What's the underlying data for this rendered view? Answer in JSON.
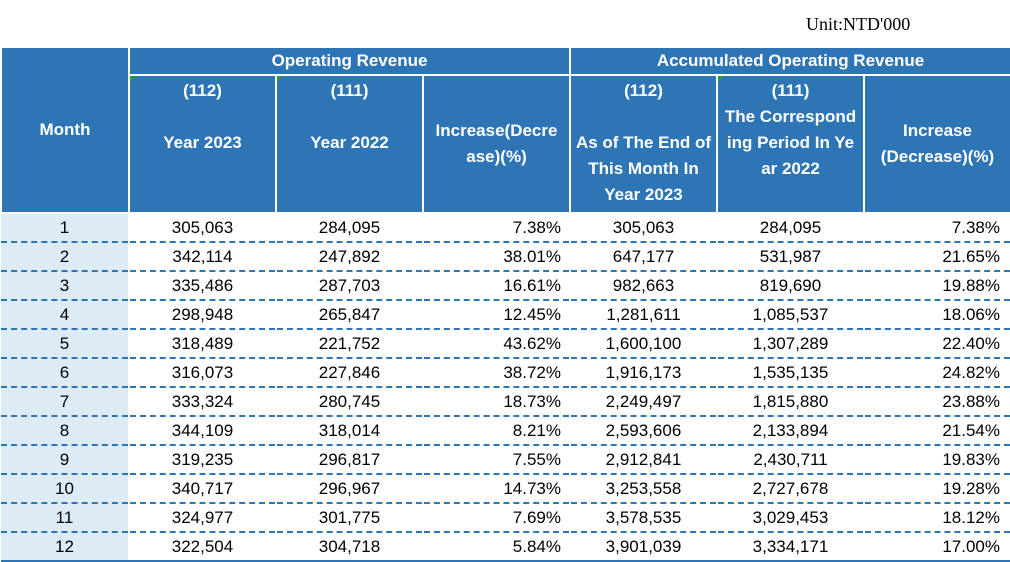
{
  "unit_label": "Unit:NTD'000",
  "headers": {
    "month": "Month",
    "operating_revenue": "Operating Revenue",
    "accumulated_revenue": "Accumulated Operating Revenue",
    "or_112": "(112)",
    "or_112_year": "Year 2023",
    "or_111": "(111)",
    "or_111_year": "Year 2022",
    "or_change": "Increase(Decrease)(%)",
    "acc_112": "(112)",
    "acc_112_desc": "As of The End of This Month In Year 2023",
    "acc_111": "(111)",
    "acc_111_desc": "The Corresponding Period In Year 2022",
    "acc_change": "Increase (Decrease)(%)"
  },
  "rows": [
    {
      "month": "1",
      "rev_2023": "305,063",
      "rev_2022": "284,095",
      "rev_change": "7.38%",
      "acc_2023": "305,063",
      "acc_2022": "284,095",
      "acc_change": "7.38%"
    },
    {
      "month": "2",
      "rev_2023": "342,114",
      "rev_2022": "247,892",
      "rev_change": "38.01%",
      "acc_2023": "647,177",
      "acc_2022": "531,987",
      "acc_change": "21.65%"
    },
    {
      "month": "3",
      "rev_2023": "335,486",
      "rev_2022": "287,703",
      "rev_change": "16.61%",
      "acc_2023": "982,663",
      "acc_2022": "819,690",
      "acc_change": "19.88%"
    },
    {
      "month": "4",
      "rev_2023": "298,948",
      "rev_2022": "265,847",
      "rev_change": "12.45%",
      "acc_2023": "1,281,611",
      "acc_2022": "1,085,537",
      "acc_change": "18.06%"
    },
    {
      "month": "5",
      "rev_2023": "318,489",
      "rev_2022": "221,752",
      "rev_change": "43.62%",
      "acc_2023": "1,600,100",
      "acc_2022": "1,307,289",
      "acc_change": "22.40%"
    },
    {
      "month": "6",
      "rev_2023": "316,073",
      "rev_2022": "227,846",
      "rev_change": "38.72%",
      "acc_2023": "1,916,173",
      "acc_2022": "1,535,135",
      "acc_change": "24.82%"
    },
    {
      "month": "7",
      "rev_2023": "333,324",
      "rev_2022": "280,745",
      "rev_change": "18.73%",
      "acc_2023": "2,249,497",
      "acc_2022": "1,815,880",
      "acc_change": "23.88%"
    },
    {
      "month": "8",
      "rev_2023": "344,109",
      "rev_2022": "318,014",
      "rev_change": "8.21%",
      "acc_2023": "2,593,606",
      "acc_2022": "2,133,894",
      "acc_change": "21.54%"
    },
    {
      "month": "9",
      "rev_2023": "319,235",
      "rev_2022": "296,817",
      "rev_change": "7.55%",
      "acc_2023": "2,912,841",
      "acc_2022": "2,430,711",
      "acc_change": "19.83%"
    },
    {
      "month": "10",
      "rev_2023": "340,717",
      "rev_2022": "296,967",
      "rev_change": "14.73%",
      "acc_2023": "3,253,558",
      "acc_2022": "2,727,678",
      "acc_change": "19.28%"
    },
    {
      "month": "11",
      "rev_2023": "324,977",
      "rev_2022": "301,775",
      "rev_change": "7.69%",
      "acc_2023": "3,578,535",
      "acc_2022": "3,029,453",
      "acc_change": "18.12%"
    },
    {
      "month": "12",
      "rev_2023": "322,504",
      "rev_2022": "304,718",
      "rev_change": "5.84%",
      "acc_2023": "3,901,039",
      "acc_2022": "3,334,171",
      "acc_change": "17.00%"
    }
  ]
}
